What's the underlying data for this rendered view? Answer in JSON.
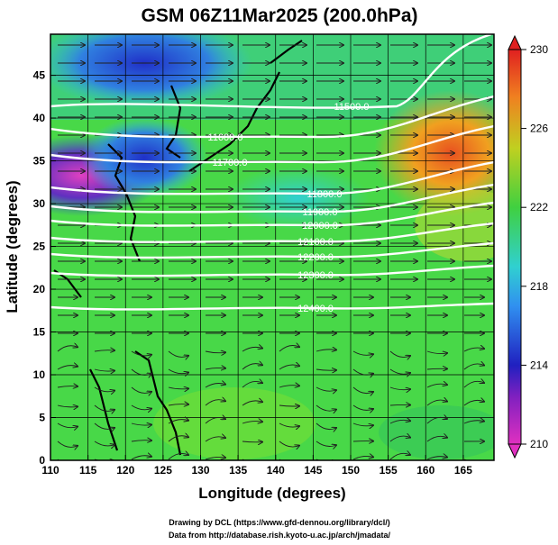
{
  "title": "GSM 06Z11Mar2025 (200.0hPa)",
  "x_axis": {
    "label": "Longitude (degrees)",
    "ticks": [
      "110",
      "115",
      "120",
      "125",
      "130",
      "135",
      "140",
      "145",
      "150",
      "155",
      "160",
      "165"
    ]
  },
  "y_axis": {
    "label": "Latitude  (degrees)",
    "ticks": [
      "0",
      "5",
      "10",
      "15",
      "20",
      "25",
      "30",
      "35",
      "40",
      "45"
    ]
  },
  "colorbar": {
    "labels": [
      "230",
      "226",
      "222",
      "218",
      "214",
      "210"
    ],
    "range": [
      210,
      230
    ]
  },
  "contour_labels": [
    "11500.0",
    "11600.0",
    "11700.0",
    "11800.0",
    "11900.0",
    "12000.0",
    "12100.0",
    "12200.0",
    "12300.0",
    "12400.0"
  ],
  "credits": [
    "Drawing by DCL (https://www.gfd-dennou.org/library/dcl/)",
    "Data from http://database.rish.kyoto-u.ac.jp/arch/jmadata/"
  ],
  "colors": {
    "magenta": "#e040c0",
    "blue": "#2020c0",
    "cyan": "#30d0d0",
    "green": "#40d040",
    "yellow": "#d0d020",
    "orange": "#f08020",
    "red": "#e02020"
  }
}
